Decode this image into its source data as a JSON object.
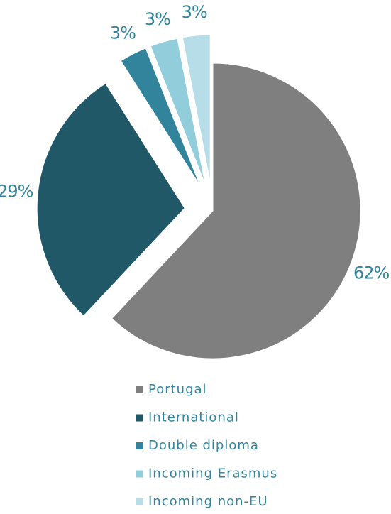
{
  "chart_data": {
    "type": "pie",
    "categories": [
      "Portugal",
      "International",
      "Double diploma",
      "Incoming Erasmus",
      "Incoming non-EU"
    ],
    "values": [
      62,
      29,
      3,
      3,
      3
    ],
    "value_labels": [
      "62%",
      "29%",
      "3%",
      "3%",
      "3%"
    ],
    "colors": [
      "#7f7f7f",
      "#215868",
      "#31849b",
      "#92cddc",
      "#b7dee8"
    ],
    "legend": "bottom"
  }
}
